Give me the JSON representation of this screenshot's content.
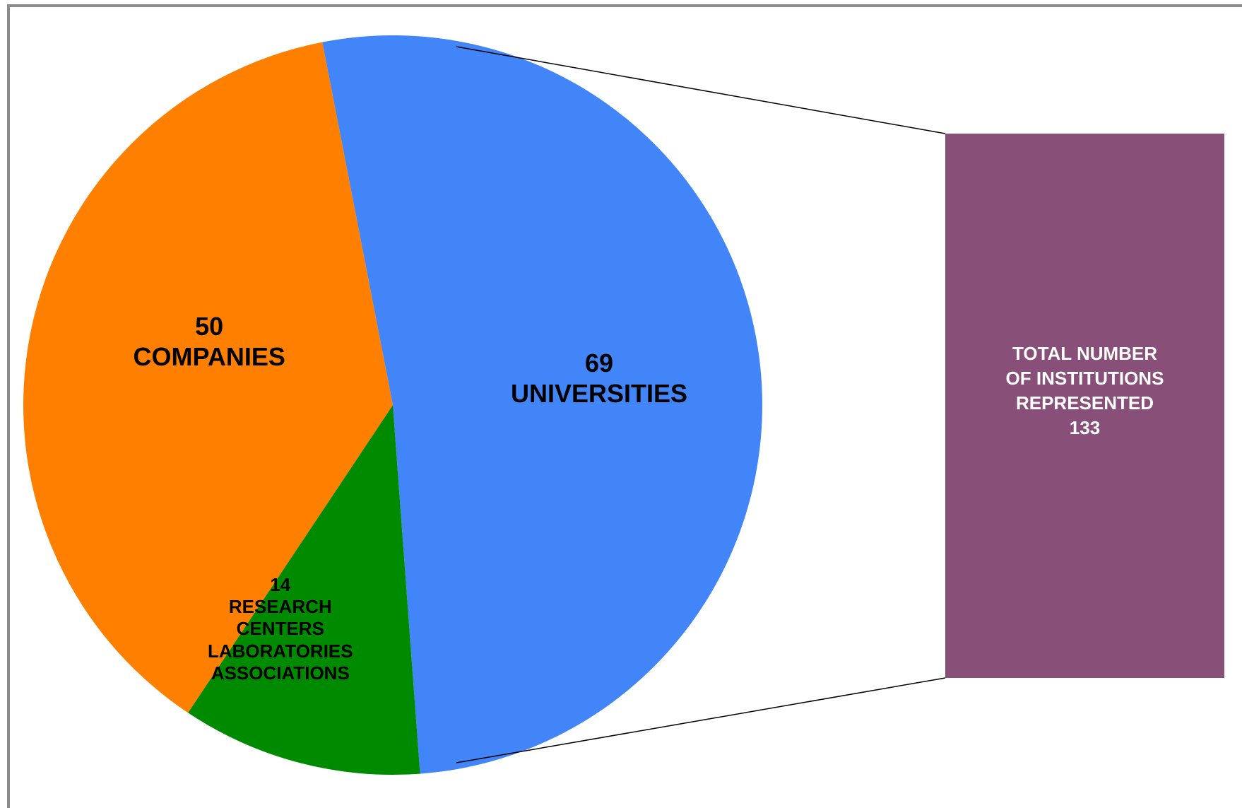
{
  "chart_data": {
    "type": "pie",
    "title": "",
    "slices": [
      {
        "value": 69,
        "label_lines": [
          "69",
          "UNIVERSITIES"
        ],
        "color": "#4285f9"
      },
      {
        "value": 14,
        "label_lines": [
          "14",
          "RESEARCH",
          "CENTERS",
          "LABORATORIES",
          "ASSOCIATIONS"
        ],
        "color": "#008a00"
      },
      {
        "value": 50,
        "label_lines": [
          "50",
          "COMPANIES"
        ],
        "color": "#ff7f00"
      }
    ],
    "total": {
      "label_lines": [
        "TOTAL NUMBER",
        "OF INSTITUTIONS",
        "REPRESENTED"
      ],
      "value": "133",
      "color": "#885078"
    },
    "legend": "none"
  }
}
